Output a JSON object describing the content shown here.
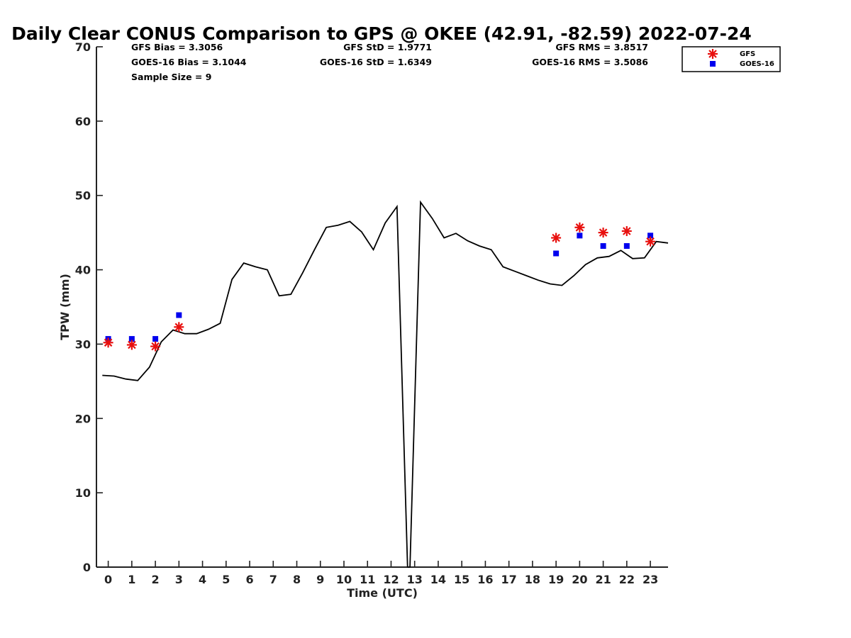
{
  "chart_data": {
    "type": "line",
    "title": "Daily Clear CONUS Comparison to GPS @ OKEE (42.91, -82.59) 2022-07-24",
    "xlabel": "Time (UTC)",
    "ylabel": "TPW (mm)",
    "xlim": [
      -0.5,
      23.75
    ],
    "ylim": [
      0,
      70
    ],
    "xticks": [
      0,
      1,
      2,
      3,
      4,
      5,
      6,
      7,
      8,
      9,
      10,
      11,
      12,
      13,
      14,
      15,
      16,
      17,
      18,
      19,
      20,
      21,
      22,
      23
    ],
    "yticks": [
      0,
      10,
      20,
      30,
      40,
      50,
      60,
      70
    ],
    "grid": false,
    "legend_position": "top-right outside",
    "stats": {
      "gfs_bias": "GFS Bias = 3.3056",
      "gfs_std": "GFS StD = 1.9771",
      "gfs_rms": "GFS RMS = 3.8517",
      "goes_bias": "GOES-16 Bias = 3.1044",
      "goes_std": "GOES-16 StD = 1.6349",
      "goes_rms": "GOES-16 RMS = 3.5086",
      "sample_size": "Sample Size = 9"
    },
    "series": [
      {
        "name": "",
        "kind": "line",
        "color": "#000000",
        "x": [
          -0.25,
          0.25,
          0.75,
          1.25,
          1.75,
          2.25,
          2.75,
          3.25,
          3.75,
          4.25,
          4.75,
          5.25,
          5.75,
          6.25,
          6.75,
          7.25,
          7.75,
          8.25,
          8.75,
          9.25,
          9.75,
          10.25,
          10.75,
          11.25,
          11.75,
          12.25,
          12.7,
          12.8,
          13.25,
          13.75,
          14.25,
          14.75,
          15.25,
          15.75,
          16.25,
          16.75,
          17.25,
          17.75,
          18.25,
          18.75,
          19.25,
          19.75,
          20.25,
          20.75,
          21.25,
          21.75,
          22.25,
          22.75,
          23.25,
          23.75
        ],
        "y": [
          25.8,
          25.7,
          25.3,
          25.1,
          26.9,
          30.3,
          31.9,
          31.4,
          31.4,
          32.0,
          32.8,
          38.7,
          40.9,
          40.4,
          40.0,
          36.5,
          36.7,
          39.6,
          42.7,
          45.7,
          46.0,
          46.5,
          45.1,
          42.7,
          46.3,
          48.5,
          0.0,
          0.0,
          49.1,
          46.9,
          44.3,
          44.9,
          43.9,
          43.2,
          42.7,
          40.4,
          39.8,
          39.2,
          38.6,
          38.1,
          37.9,
          39.2,
          40.7,
          41.6,
          41.8,
          42.6,
          41.5,
          41.6,
          43.8,
          43.6
        ]
      },
      {
        "name": "GFS",
        "kind": "scatter",
        "marker": "asterisk",
        "color": "#e8100e",
        "x": [
          0,
          1,
          2,
          3,
          19,
          20,
          21,
          22,
          23
        ],
        "y": [
          30.2,
          29.9,
          29.7,
          32.3,
          44.3,
          45.7,
          45.0,
          45.2,
          43.8
        ]
      },
      {
        "name": "GOES-16",
        "kind": "scatter",
        "marker": "square",
        "color": "#0000ee",
        "x": [
          0,
          1,
          2,
          3,
          19,
          20,
          21,
          22,
          23
        ],
        "y": [
          30.7,
          30.7,
          30.7,
          33.9,
          42.2,
          44.6,
          43.2,
          43.2,
          44.6
        ]
      }
    ]
  }
}
